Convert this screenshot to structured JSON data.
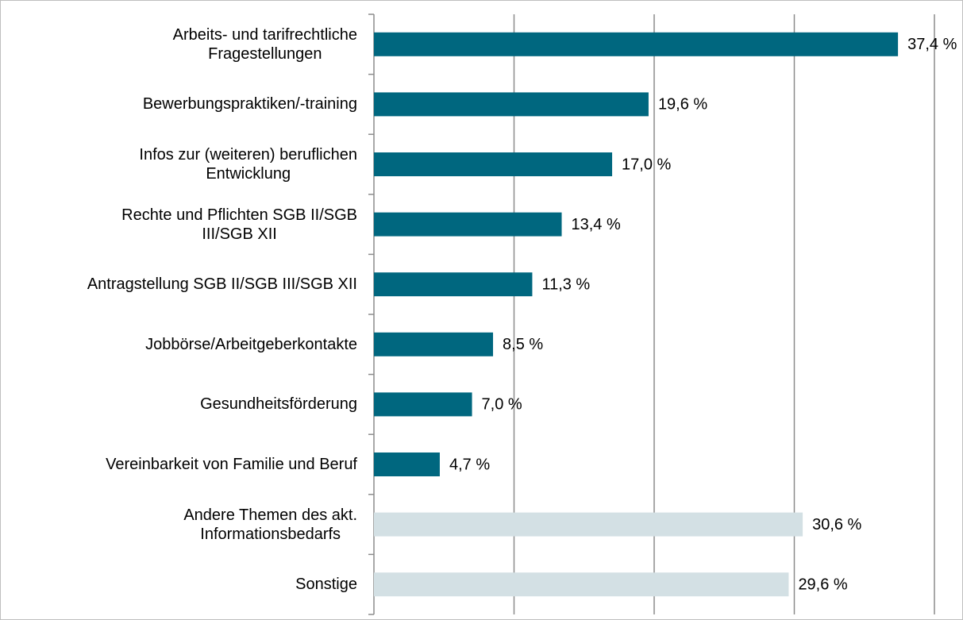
{
  "chart_data": {
    "type": "hbar",
    "categories": [
      "Arbeits- und tarifrechtliche\nFragestellungen",
      "Bewerbungspraktiken/-training",
      "Infos zur (weiteren) beruflichen\nEntwicklung",
      "Rechte und Pflichten SGB II/SGB\nIII/SGB XII",
      "Antragstellung SGB II/SGB III/SGB XII",
      "Jobbörse/Arbeitgeberkontakte",
      "Gesundheitsförderung",
      "Vereinbarkeit von Familie und Beruf",
      "Andere Themen des akt.\nInformationsbedarfs",
      "Sonstige"
    ],
    "values": [
      37.4,
      19.6,
      17.0,
      13.4,
      11.3,
      8.5,
      7.0,
      4.7,
      30.6,
      29.6
    ],
    "value_labels": [
      "37,4 %",
      "19,6 %",
      "17,0 %",
      "13,4 %",
      "11,3 %",
      "8,5 %",
      "7,0 %",
      "4,7 %",
      "30,6 %",
      "29,6 %"
    ],
    "colors": [
      "#00677f",
      "#00677f",
      "#00677f",
      "#00677f",
      "#00677f",
      "#00677f",
      "#00677f",
      "#00677f",
      "#d3e0e4",
      "#d3e0e4"
    ],
    "xlim": [
      0,
      40
    ],
    "xticks": [
      0,
      10,
      20,
      30,
      40
    ],
    "grid": true
  }
}
